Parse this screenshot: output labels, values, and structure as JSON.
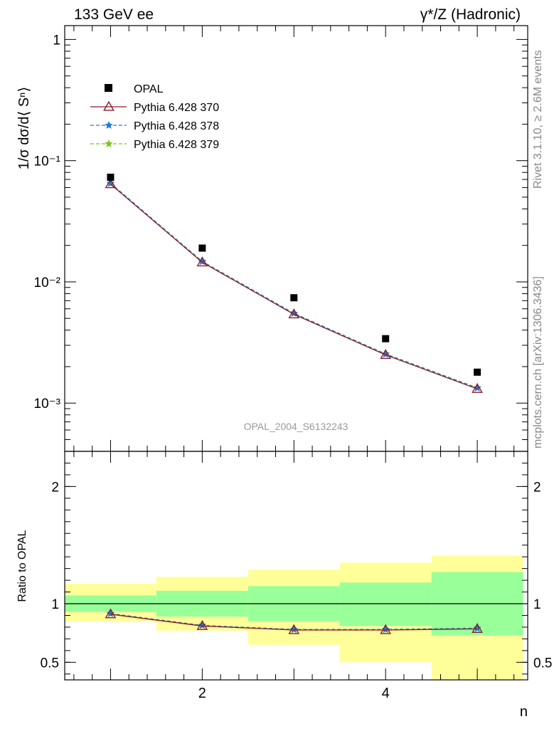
{
  "header": {
    "left": "133 GeV ee",
    "right": "γ*/Z (Hadronic)"
  },
  "side_labels": {
    "rivet": "Rivet 3.1.10, ≥ 2.6M events",
    "mcplots": "mcplots.cern.ch [arXiv:1306.3436]"
  },
  "watermark": "OPAL_2004_S6132243",
  "colors": {
    "data": "#000000",
    "p370": "#8b1a2b",
    "p378": "#1f78d4",
    "p379": "#7ac61e",
    "band_inner": "#99ff99",
    "band_outer": "#ffff99"
  },
  "chart_data": [
    {
      "type": "scatter",
      "panel": "main",
      "ylabel": "1/σ dσ/d⟨ Sⁿ⟩",
      "xlabel": "n",
      "yscale": "log",
      "ylim": [
        0.0004,
        1.3
      ],
      "xlim": [
        0.5,
        5.55
      ],
      "ytick_labels": [
        "1",
        "10⁻¹",
        "10⁻²",
        "10⁻³"
      ],
      "legend": [
        "OPAL",
        "Pythia 6.428 370",
        "Pythia 6.428 378",
        "Pythia 6.428 379"
      ],
      "legend_position": "top-left",
      "x": [
        1,
        2,
        3,
        4,
        5
      ],
      "series": [
        {
          "name": "OPAL",
          "values": [
            0.073,
            0.019,
            0.0074,
            0.0034,
            0.0018
          ]
        },
        {
          "name": "Pythia 6.428 370",
          "values": [
            0.064,
            0.0145,
            0.0054,
            0.0025,
            0.00131
          ]
        },
        {
          "name": "Pythia 6.428 378",
          "values": [
            0.065,
            0.0147,
            0.0055,
            0.00253,
            0.00133
          ]
        },
        {
          "name": "Pythia 6.428 379",
          "values": [
            0.065,
            0.0148,
            0.0055,
            0.00255,
            0.00134
          ]
        }
      ]
    },
    {
      "type": "line",
      "panel": "ratio",
      "ylabel": "Ratio to OPAL",
      "xlabel": "n",
      "ylim": [
        0.35,
        2.3
      ],
      "xlim": [
        0.5,
        5.55
      ],
      "ytick_labels": [
        "2",
        "1",
        "0.5"
      ],
      "xtick_labels": [
        "2",
        "4"
      ],
      "x": [
        1,
        2,
        3,
        4,
        5
      ],
      "bands": [
        {
          "xlow": 0.5,
          "xhigh": 1.5,
          "outer": [
            0.85,
            1.17
          ],
          "inner": [
            0.93,
            1.07
          ]
        },
        {
          "xlow": 1.5,
          "xhigh": 2.5,
          "outer": [
            0.77,
            1.23
          ],
          "inner": [
            0.89,
            1.11
          ]
        },
        {
          "xlow": 2.5,
          "xhigh": 3.5,
          "outer": [
            0.65,
            1.29
          ],
          "inner": [
            0.85,
            1.15
          ]
        },
        {
          "xlow": 3.5,
          "xhigh": 4.5,
          "outer": [
            0.5,
            1.35
          ],
          "inner": [
            0.81,
            1.18
          ]
        },
        {
          "xlow": 4.5,
          "xhigh": 5.5,
          "outer": [
            0.35,
            1.41
          ],
          "inner": [
            0.73,
            1.27
          ]
        }
      ],
      "series": [
        {
          "name": "Pythia 6.428 370",
          "values": [
            0.91,
            0.81,
            0.775,
            0.775,
            0.785
          ]
        },
        {
          "name": "Pythia 6.428 378",
          "values": [
            0.915,
            0.815,
            0.78,
            0.78,
            0.79
          ]
        },
        {
          "name": "Pythia 6.428 379",
          "values": [
            0.915,
            0.815,
            0.78,
            0.78,
            0.792
          ]
        }
      ]
    }
  ]
}
